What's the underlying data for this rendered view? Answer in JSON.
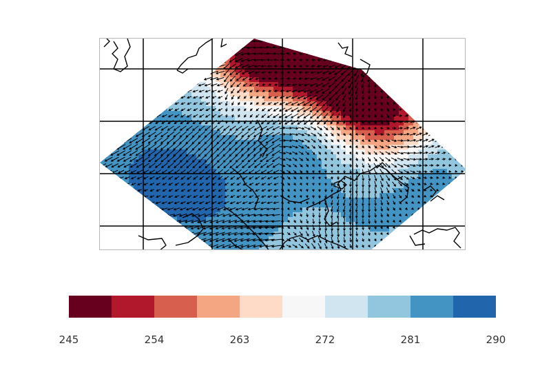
{
  "map": {
    "field_colors": [
      "#67001f",
      "#b2182b",
      "#d6604d",
      "#f4a582",
      "#fddbc7",
      "#f7f7f7",
      "#d1e5f0",
      "#92c5de",
      "#4393c3",
      "#2166ac"
    ],
    "arrow_color": "#000000",
    "coastline_color": "#000000",
    "gridline_color": "#000000",
    "grid": true
  },
  "colorbar": {
    "colors": [
      "#67001f",
      "#b2182b",
      "#d6604d",
      "#f4a582",
      "#fddbc7",
      "#f7f7f7",
      "#d1e5f0",
      "#92c5de",
      "#4393c3",
      "#2166ac"
    ],
    "range": [
      245,
      290
    ],
    "ticks": [
      "245",
      "254",
      "263",
      "272",
      "281",
      "290"
    ],
    "tick_values": [
      245,
      254,
      263,
      272,
      281,
      290
    ]
  }
}
